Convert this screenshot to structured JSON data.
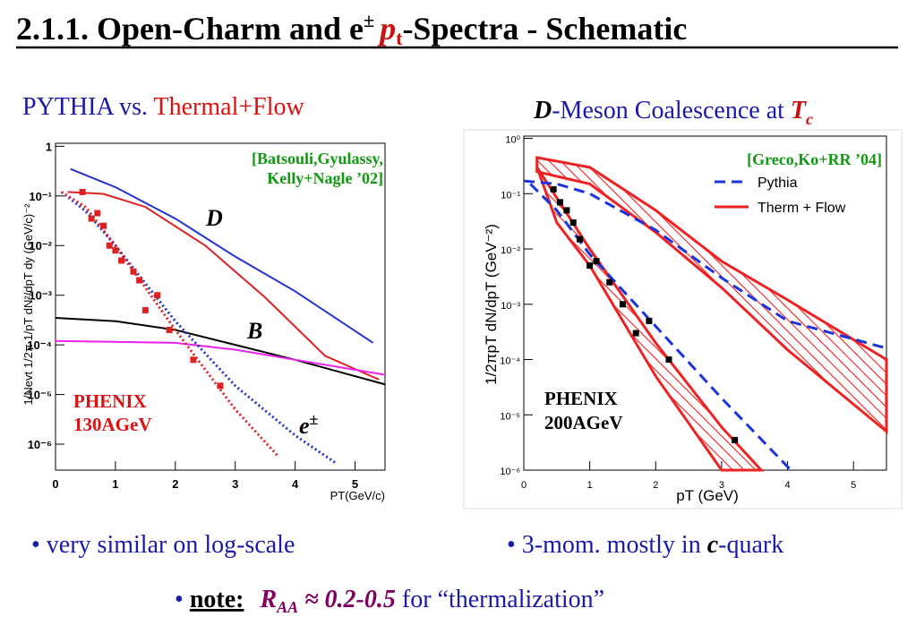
{
  "title": {
    "a": "2.1.1. Open-Charm and e",
    "pm": "±",
    "p": "p",
    "t": "t",
    "b": "-Spectra - Schematic"
  },
  "left": {
    "heading": {
      "a": "PYTHIA vs. ",
      "b": "Thermal+Flow"
    },
    "plot": {
      "log_y": true,
      "xlim": [
        0,
        5.5
      ],
      "ylim": [
        3e-07,
        1.15
      ],
      "xticks": [
        0,
        1,
        2,
        3,
        4,
        5
      ],
      "yticks": [
        {
          "value": 1,
          "label": "1"
        },
        {
          "value": 0.1,
          "label": "10⁻¹"
        },
        {
          "value": 0.01,
          "label": "10⁻²"
        },
        {
          "value": 0.001,
          "label": "10⁻³"
        },
        {
          "value": 0.0001,
          "label": "10⁻⁴"
        },
        {
          "value": 1e-05,
          "label": "10⁻⁵"
        },
        {
          "value": 1e-06,
          "label": "10⁻⁶"
        }
      ],
      "xlabel": "PT(GeV/c)",
      "ylabel": "1/Nevt 1/2π 1/pT dN²/dpT dy (GeV/c)⁻²",
      "curves": [
        {
          "color": "#2233cc",
          "style": "solid",
          "x": [
            0.25,
            1,
            2,
            3,
            4,
            5.3
          ],
          "y": [
            0.35,
            0.15,
            0.035,
            0.006,
            0.0012,
            0.00011
          ]
        },
        {
          "color": "#dd2222",
          "style": "solid",
          "x": [
            0.2,
            0.8,
            1.5,
            2.5,
            3.5,
            4.5,
            5.4
          ],
          "y": [
            0.12,
            0.11,
            0.06,
            0.01,
            0.0009,
            6e-05,
            2e-05
          ]
        },
        {
          "color": "#000000",
          "style": "solid",
          "x": [
            0,
            1,
            2,
            3,
            4,
            5.5
          ],
          "y": [
            0.00035,
            0.0003,
            0.0002,
            0.0001,
            5e-05,
            1.6e-05
          ]
        },
        {
          "color": "#ee22ee",
          "style": "solid",
          "x": [
            0,
            2,
            3,
            4,
            5.5
          ],
          "y": [
            0.00012,
            0.00011,
            8e-05,
            5e-05,
            2.5e-05
          ]
        },
        {
          "color": "#2233cc",
          "style": "dotted",
          "x": [
            0.1,
            0.5,
            1,
            2,
            3,
            4,
            4.7
          ],
          "y": [
            0.12,
            0.05,
            0.01,
            0.0003,
            1.5e-05,
            1.5e-06,
            4e-07
          ]
        },
        {
          "color": "#dd2222",
          "style": "dotted",
          "x": [
            0.1,
            0.5,
            1,
            2,
            3,
            3.7
          ],
          "y": [
            0.12,
            0.06,
            0.01,
            0.0002,
            5e-06,
            6e-07
          ]
        }
      ],
      "points": {
        "color": "#dd2222",
        "x": [
          0.45,
          0.6,
          0.7,
          0.8,
          0.9,
          1,
          1.1,
          1.3,
          1.4,
          1.5,
          1.7,
          1.9,
          2.3,
          2.75
        ],
        "y": [
          0.12,
          0.035,
          0.045,
          0.025,
          0.01,
          0.008,
          0.005,
          0.003,
          0.002,
          0.0005,
          0.001,
          0.0002,
          5e-05,
          1.5e-05
        ]
      },
      "ref": [
        "[Batsouli,Gyulassy,",
        "Kelly+Nagle ’02]"
      ],
      "labels": {
        "D": "D",
        "B": "B",
        "e": "e",
        "pm": "±"
      },
      "experiment": [
        "PHENIX",
        "130AGeV"
      ]
    }
  },
  "right": {
    "heading": {
      "a": "D",
      "b": "-Meson Coalescence at ",
      "c": "T",
      "d": "c"
    },
    "plot": {
      "log_y": true,
      "xlim": [
        0,
        5.5
      ],
      "ylim": [
        1e-06,
        1.1
      ],
      "xticks": [
        0,
        1,
        2,
        3,
        4,
        5
      ],
      "yticks": [
        {
          "value": 1,
          "label": "10⁰"
        },
        {
          "value": 0.1,
          "label": "10⁻¹"
        },
        {
          "value": 0.01,
          "label": "10⁻²"
        },
        {
          "value": 0.001,
          "label": "10⁻³"
        },
        {
          "value": 0.0001,
          "label": "10⁻⁴"
        },
        {
          "value": 1e-05,
          "label": "10⁻⁵"
        },
        {
          "value": 1e-06,
          "label": "10⁻⁶"
        }
      ],
      "xlabel": "pT (GeV)",
      "ylabel": "1/2πpT dN/dpT  (GeV⁻²)",
      "curves": [
        {
          "color": "#1a33dd",
          "style": "dashed",
          "x": [
            0,
            0.5,
            1,
            2,
            3,
            4,
            5.5
          ],
          "y": [
            0.17,
            0.15,
            0.1,
            0.022,
            0.003,
            0.0005,
            0.00016
          ]
        },
        {
          "color": "#1a33dd",
          "style": "dashed",
          "x": [
            0.1,
            0.5,
            1,
            2,
            3,
            4.05
          ],
          "y": [
            0.15,
            0.05,
            0.008,
            0.0004,
            2e-05,
            1e-06
          ]
        }
      ],
      "bands": [
        {
          "color": "#ee2222",
          "upper": {
            "x": [
              0.2,
              1,
              2,
              3,
              4,
              5.5
            ],
            "y": [
              0.45,
              0.3,
              0.05,
              0.006,
              0.0012,
              0.0001
            ]
          },
          "lower": {
            "x": [
              0.2,
              1,
              2,
              3,
              4,
              5.5
            ],
            "y": [
              0.25,
              0.15,
              0.02,
              0.002,
              0.00015,
              5e-06
            ]
          }
        },
        {
          "color": "#ee2222",
          "upper": {
            "x": [
              0.2,
              1,
              2,
              3,
              3.6
            ],
            "y": [
              0.3,
              0.01,
              0.0002,
              6e-06,
              1e-06
            ]
          },
          "lower": {
            "x": [
              0.5,
              1,
              2,
              3
            ],
            "y": [
              0.03,
              0.005,
              5e-05,
              1e-06
            ]
          }
        }
      ],
      "points": {
        "color": "#000000",
        "x": [
          0.45,
          0.55,
          0.65,
          0.75,
          0.85,
          1,
          1.1,
          1.3,
          1.5,
          1.7,
          1.9,
          2.2,
          3.2
        ],
        "y": [
          0.12,
          0.07,
          0.05,
          0.03,
          0.015,
          0.005,
          0.006,
          0.0025,
          0.001,
          0.0003,
          0.0005,
          0.0001,
          3.5e-06
        ]
      },
      "ref": "[Greco,Ko+RR ’04]",
      "legend": [
        {
          "name": "Pythia",
          "color": "#1a33dd",
          "style": "dashed"
        },
        {
          "name": "Therm + Flow",
          "color": "#ee2222",
          "style": "solid"
        }
      ],
      "experiment": [
        "PHENIX",
        "200AGeV"
      ]
    }
  },
  "bullets": {
    "b1": "• very similar on log-scale",
    "b2": {
      "a": "• 3-mom. mostly in ",
      "b": "c",
      "c": "-quark"
    },
    "b3": {
      "a": "• ",
      "b": "note:",
      "c": "R",
      "d": "AA",
      "e": " ≈ 0.2-0.5",
      "f": "  for “thermalization”"
    }
  }
}
